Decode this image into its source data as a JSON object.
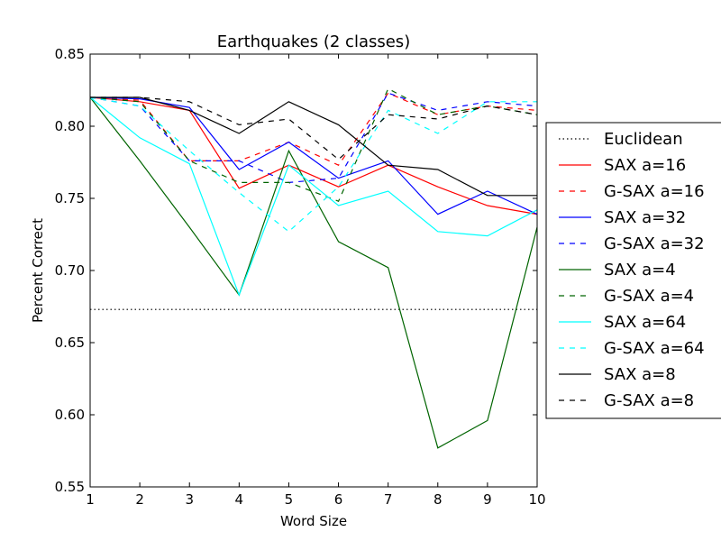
{
  "chart_data": {
    "type": "line",
    "title": "Earthquakes (2 classes)",
    "xlabel": "Word Size",
    "ylabel": "Percent Correct",
    "xlim": [
      1,
      10
    ],
    "ylim": [
      0.55,
      0.85
    ],
    "x": [
      1,
      2,
      3,
      4,
      5,
      6,
      7,
      8,
      9,
      10
    ],
    "xticks": [
      "1",
      "2",
      "3",
      "4",
      "5",
      "6",
      "7",
      "8",
      "9",
      "10"
    ],
    "yticks": [
      "0.55",
      "0.60",
      "0.65",
      "0.70",
      "0.75",
      "0.80",
      "0.85"
    ],
    "grid": false,
    "legend_position": "right, outside plot",
    "baseline": {
      "name": "Euclidean",
      "value": 0.673,
      "color": "#000000",
      "style": "dotted"
    },
    "series": [
      {
        "name": "SAX a=16",
        "color": "#ff0000",
        "style": "solid",
        "values": [
          0.82,
          0.817,
          0.811,
          0.757,
          0.773,
          0.758,
          0.773,
          0.758,
          0.745,
          0.739
        ]
      },
      {
        "name": "G-SAX a=16",
        "color": "#ff0000",
        "style": "dashed",
        "values": [
          0.82,
          0.818,
          0.776,
          0.776,
          0.789,
          0.773,
          0.823,
          0.808,
          0.814,
          0.811
        ]
      },
      {
        "name": "SAX a=32",
        "color": "#0000ff",
        "style": "solid",
        "values": [
          0.82,
          0.819,
          0.813,
          0.77,
          0.789,
          0.764,
          0.776,
          0.739,
          0.755,
          0.739
        ]
      },
      {
        "name": "G-SAX a=32",
        "color": "#0000ff",
        "style": "dashed",
        "values": [
          0.82,
          0.814,
          0.776,
          0.776,
          0.761,
          0.764,
          0.823,
          0.811,
          0.817,
          0.814
        ]
      },
      {
        "name": "SAX a=4",
        "color": "#006400",
        "style": "solid",
        "values": [
          0.82,
          0.776,
          0.73,
          0.683,
          0.783,
          0.72,
          0.702,
          0.577,
          0.596,
          0.73
        ]
      },
      {
        "name": "G-SAX a=4",
        "color": "#006400",
        "style": "dashed",
        "values": [
          0.82,
          0.817,
          0.776,
          0.761,
          0.761,
          0.748,
          0.826,
          0.808,
          0.814,
          0.808
        ]
      },
      {
        "name": "SAX a=64",
        "color": "#00ffff",
        "style": "solid",
        "values": [
          0.82,
          0.792,
          0.774,
          0.683,
          0.773,
          0.745,
          0.755,
          0.727,
          0.724,
          0.742
        ]
      },
      {
        "name": "G-SAX a=64",
        "color": "#00ffff",
        "style": "dashed",
        "values": [
          0.82,
          0.814,
          0.783,
          0.754,
          0.727,
          0.758,
          0.811,
          0.795,
          0.817,
          0.817
        ]
      },
      {
        "name": "SAX a=8",
        "color": "#000000",
        "style": "solid",
        "values": [
          0.82,
          0.82,
          0.811,
          0.795,
          0.817,
          0.801,
          0.773,
          0.77,
          0.752,
          0.752
        ]
      },
      {
        "name": "G-SAX a=8",
        "color": "#000000",
        "style": "dashed",
        "values": [
          0.82,
          0.82,
          0.817,
          0.801,
          0.805,
          0.777,
          0.808,
          0.805,
          0.814,
          0.808
        ]
      }
    ]
  }
}
